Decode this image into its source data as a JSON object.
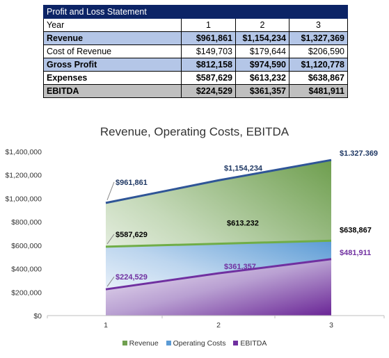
{
  "table": {
    "title": "Profit and Loss Statement",
    "header": {
      "label": "Year",
      "cols": [
        "1",
        "2",
        "3"
      ]
    },
    "rows": [
      {
        "label": "Revenue",
        "values": [
          "$961,861",
          "$1,154,234",
          "$1,327,369"
        ],
        "style": "blue"
      },
      {
        "label": "Cost of Revenue",
        "values": [
          "$149,703",
          "$179,644",
          "$206,590"
        ],
        "style": "plain"
      },
      {
        "label": "Gross Profit",
        "values": [
          "$812,158",
          "$974,590",
          "$1,120,778"
        ],
        "style": "blue"
      },
      {
        "label": "Expenses",
        "values": [
          "$587,629",
          "$613,232",
          "$638,867"
        ],
        "style": "bold"
      },
      {
        "label": "EBITDA",
        "values": [
          "$224,529",
          "$361,357",
          "$481,911"
        ],
        "style": "gray"
      }
    ]
  },
  "chart_data": {
    "type": "area",
    "title": "Revenue, Operating Costs, EBITDA",
    "x": [
      "1",
      "2",
      "3"
    ],
    "ylim": [
      0,
      1400000
    ],
    "yticks": [
      {
        "value": 0,
        "label": "$0"
      },
      {
        "value": 200000,
        "label": "$200,000"
      },
      {
        "value": 400000,
        "label": "$400,000"
      },
      {
        "value": 600000,
        "label": "$600,000"
      },
      {
        "value": 800000,
        "label": "$800,000"
      },
      {
        "value": 1000000,
        "label": "$1,000,000"
      },
      {
        "value": 1200000,
        "label": "$1,200,000"
      },
      {
        "value": 1400000,
        "label": "$1,400,000"
      }
    ],
    "grid": false,
    "legend_position": "bottom",
    "series": [
      {
        "name": "Revenue",
        "values": [
          961861,
          1154234,
          1327369
        ],
        "labels": [
          "$961,861",
          "$1,154,234",
          "$1.327.369"
        ],
        "line_color": "#2f5597",
        "label_color": "#1f3864",
        "fill_color": "#70a050"
      },
      {
        "name": "Operating Costs",
        "values": [
          587629,
          613232,
          638867
        ],
        "labels": [
          "$587,629",
          "$613.232",
          "$638,867"
        ],
        "line_color": "#70ad47",
        "label_color": "#000000",
        "fill_color": "#5b9bd5"
      },
      {
        "name": "EBITDA",
        "values": [
          224529,
          361357,
          481911
        ],
        "labels": [
          "$224,529",
          "$361,357",
          "$481,911"
        ],
        "line_color": "#7030a0",
        "label_color": "#7030a0",
        "fill_color": "#7030a0"
      }
    ]
  }
}
